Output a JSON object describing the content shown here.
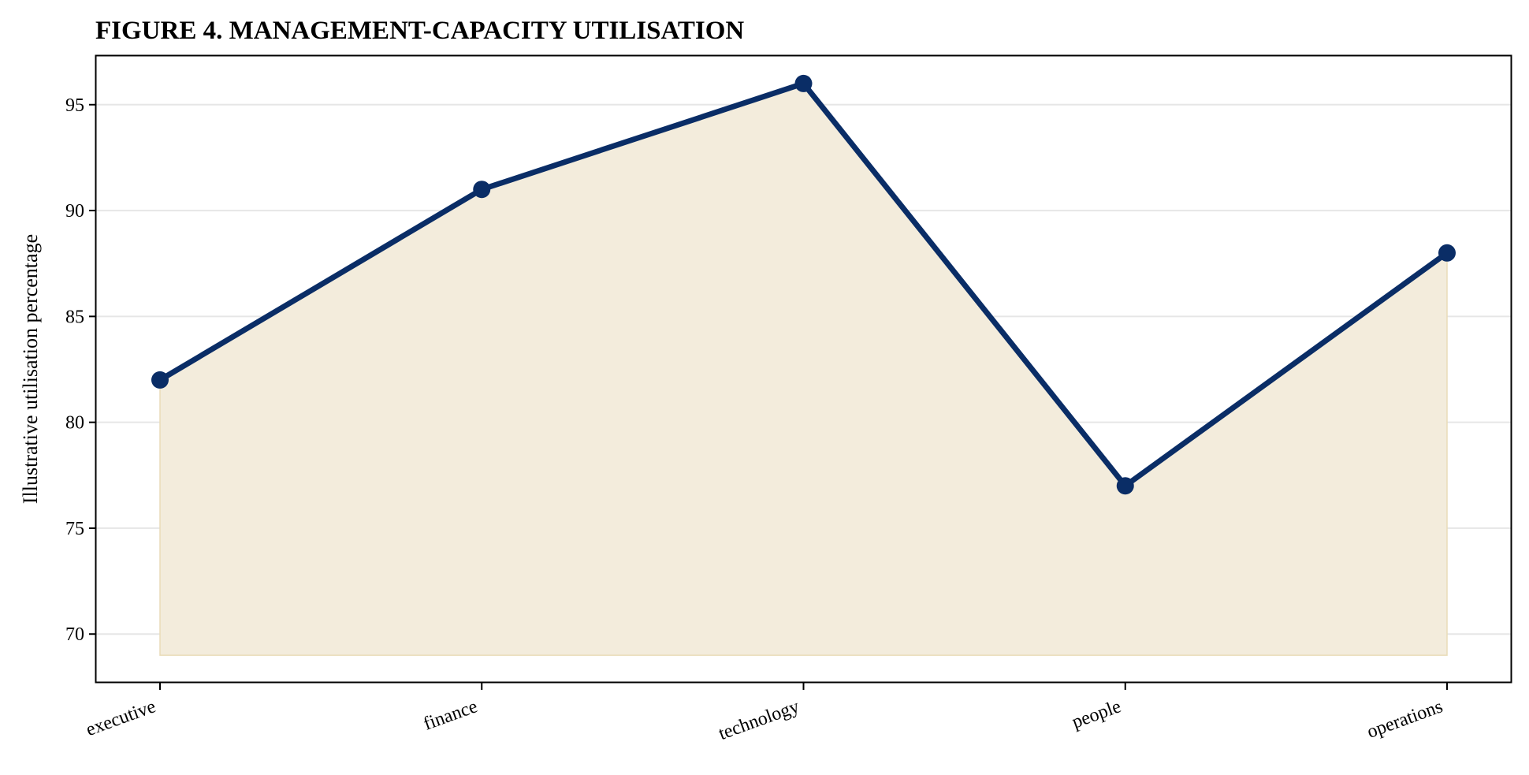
{
  "chart_data": {
    "type": "area",
    "title": "FIGURE 4. MANAGEMENT-CAPACITY UTILISATION",
    "xlabel": "",
    "ylabel": "Illustrative utilisation percentage",
    "categories": [
      "executive",
      "finance",
      "technology",
      "people",
      "operations"
    ],
    "series": [
      {
        "values": [
          82,
          91,
          96,
          77,
          88
        ]
      }
    ],
    "area_baseline": 69,
    "ylim": [
      67.7,
      97.3
    ],
    "yticks": [
      70,
      75,
      80,
      85,
      90,
      95
    ],
    "grid": "horizontal",
    "legend": "none",
    "colors": {
      "line": "#0a2d66",
      "fill": "#f3ecdc",
      "fill_edge": "#e9dcb8",
      "grid": "#e6e6e6",
      "axis": "#000000"
    }
  }
}
